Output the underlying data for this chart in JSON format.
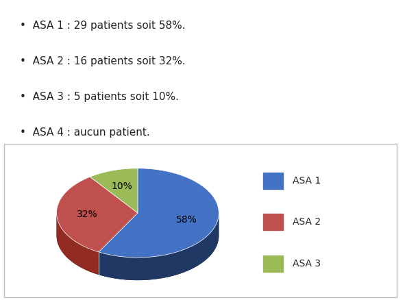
{
  "slices": [
    58,
    32,
    10
  ],
  "labels": [
    "ASA 1",
    "ASA 2",
    "ASA 3"
  ],
  "colors_top": [
    "#4472C4",
    "#C0504D",
    "#9BBB59"
  ],
  "colors_side": [
    "#1F3864",
    "#922B21",
    "#7D9B30"
  ],
  "pct_labels": [
    "58%",
    "32%",
    "10%"
  ],
  "legend_labels": [
    "ASA 1",
    "ASA 2",
    "ASA 3"
  ],
  "bullet_lines": [
    "ASA 1 : 29 patients soit 58%.",
    "ASA 2 : 16 patients soit 32%.",
    "ASA 3 : 5 patients soit 10%.",
    "ASA 4 : aucun patient."
  ],
  "start_angle": 90,
  "background_color": "#ffffff",
  "box_edge_color": "#bbbbbb",
  "text_fontsize": 10,
  "legend_fontsize": 10,
  "bullet_fontsize": 11
}
